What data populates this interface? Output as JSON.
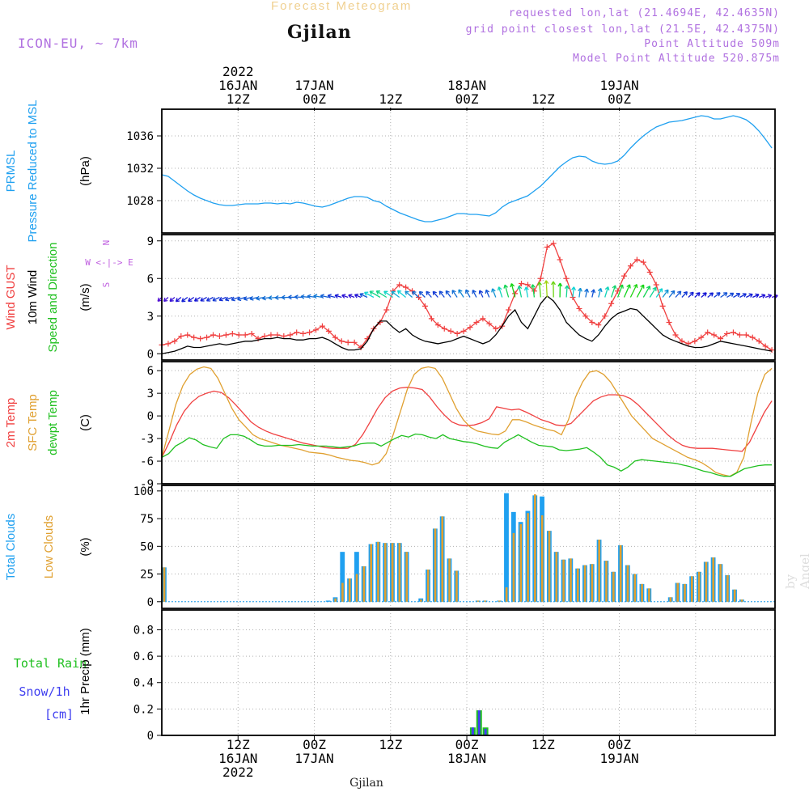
{
  "header": {
    "title": "Forecast Meteogram",
    "location": "Gjilan",
    "model": "ICON-EU, ~ 7km",
    "requested": "requested lon,lat (21.4694E, 42.4635N)",
    "grid_point": "grid point closest lon,lat (21.5E, 42.4375N)",
    "point_altitude": "Point Altitude 509m",
    "model_altitude": "Model Point Altitude 520.875m",
    "watermark": "by Angel",
    "footer_location": "Gjilan"
  },
  "colors": {
    "pressure": "#1fa0f0",
    "gust": "#f04040",
    "wind": "#000000",
    "direction": "#20c020",
    "temp2m": "#f04040",
    "sfc_temp": "#e0a030",
    "dewpt": "#20c020",
    "total_clouds": "#1fa0f0",
    "low_clouds": "#e0a030",
    "rain": "#20c020",
    "snow": "#4040f0",
    "compass": "#c060e0"
  },
  "time_axis": {
    "top_labels": [
      {
        "hour": 12,
        "lines": [
          "2022",
          "16JAN",
          "12Z"
        ]
      },
      {
        "hour": 24,
        "lines": [
          "17JAN",
          "00Z"
        ]
      },
      {
        "hour": 36,
        "lines": [
          "12Z"
        ]
      },
      {
        "hour": 48,
        "lines": [
          "18JAN",
          "00Z"
        ]
      },
      {
        "hour": 60,
        "lines": [
          "12Z"
        ]
      },
      {
        "hour": 72,
        "lines": [
          "19JAN",
          "00Z"
        ]
      }
    ],
    "bottom_labels": [
      {
        "hour": 12,
        "lines": [
          "12Z",
          "16JAN",
          "2022"
        ]
      },
      {
        "hour": 24,
        "lines": [
          "00Z",
          "17JAN"
        ]
      },
      {
        "hour": 36,
        "lines": [
          "12Z"
        ]
      },
      {
        "hour": 48,
        "lines": [
          "00Z",
          "18JAN"
        ]
      },
      {
        "hour": 60,
        "lines": [
          "12Z"
        ]
      },
      {
        "hour": 72,
        "lines": [
          "00Z",
          "19JAN"
        ]
      }
    ]
  },
  "chart_data": [
    {
      "type": "line",
      "panel": "pressure",
      "left_labels": [
        "PRMSL",
        "Pressure Reduced to MSL"
      ],
      "ylabel": "(hPa)",
      "yticks": [
        1028,
        1032,
        1036
      ],
      "ylim": [
        1024,
        1039.3
      ],
      "grid": true,
      "series": [
        {
          "values": [
            1031.2,
            1031.0,
            1030.4,
            1029.8,
            1029.2,
            1028.7,
            1028.3,
            1028.0,
            1027.7,
            1027.5,
            1027.4,
            1027.4,
            1027.5,
            1027.6,
            1027.6,
            1027.6,
            1027.7,
            1027.7,
            1027.6,
            1027.7,
            1027.6,
            1027.8,
            1027.7,
            1027.5,
            1027.3,
            1027.2,
            1027.4,
            1027.7,
            1028.0,
            1028.3,
            1028.5,
            1028.5,
            1028.4,
            1028.0,
            1027.8,
            1027.3,
            1026.9,
            1026.5,
            1026.2,
            1025.9,
            1025.6,
            1025.4,
            1025.4,
            1025.6,
            1025.8,
            1026.1,
            1026.4,
            1026.4,
            1026.3,
            1026.3,
            1026.2,
            1026.1,
            1026.5,
            1027.2,
            1027.7,
            1028.0,
            1028.3,
            1028.6,
            1029.2,
            1029.8,
            1030.6,
            1031.4,
            1032.2,
            1032.8,
            1033.3,
            1033.5,
            1033.4,
            1032.9,
            1032.6,
            1032.5,
            1032.6,
            1032.9,
            1033.6,
            1034.5,
            1035.3,
            1036.0,
            1036.6,
            1037.1,
            1037.4,
            1037.7,
            1037.8,
            1037.9,
            1038.1,
            1038.3,
            1038.5,
            1038.4,
            1038.1,
            1038.1,
            1038.3,
            1038.5,
            1038.3,
            1038.0,
            1037.4,
            1036.6,
            1035.6,
            1034.5
          ]
        }
      ]
    },
    {
      "type": "line",
      "panel": "wind",
      "left_labels": [
        "Wind GUST",
        "10m Wind",
        "Speed and Direction"
      ],
      "ylabel": "(m/s)",
      "yticks": [
        0,
        3,
        6,
        9
      ],
      "ylim": [
        -0.5,
        9.5
      ],
      "compass": [
        "N",
        "W <-|-> E",
        "S"
      ],
      "grid": true,
      "series": [
        {
          "name": "Wind GUST",
          "values": [
            0.7,
            0.8,
            1.0,
            1.4,
            1.5,
            1.3,
            1.2,
            1.3,
            1.5,
            1.4,
            1.5,
            1.6,
            1.5,
            1.5,
            1.6,
            1.2,
            1.4,
            1.5,
            1.5,
            1.4,
            1.5,
            1.7,
            1.6,
            1.7,
            1.9,
            2.2,
            1.8,
            1.3,
            1.0,
            0.9,
            0.9,
            0.5,
            1.2,
            2.0,
            2.5,
            3.5,
            5.0,
            5.5,
            5.3,
            5.0,
            4.5,
            3.8,
            2.8,
            2.3,
            2.0,
            1.8,
            1.6,
            1.8,
            2.1,
            2.5,
            2.8,
            2.4,
            2.0,
            2.2,
            3.5,
            4.8,
            5.6,
            5.5,
            5.0,
            6.0,
            8.5,
            8.8,
            7.5,
            6.0,
            4.5,
            3.6,
            3.0,
            2.5,
            2.3,
            3.0,
            4.0,
            5.0,
            6.2,
            7.0,
            7.5,
            7.3,
            6.5,
            5.5,
            3.8,
            2.5,
            1.5,
            1.0,
            0.8,
            1.0,
            1.3,
            1.7,
            1.5,
            1.2,
            1.6,
            1.7,
            1.5,
            1.5,
            1.3,
            1.0,
            0.6,
            0.3
          ]
        },
        {
          "name": "10m Wind",
          "values": [
            0,
            0.1,
            0.2,
            0.4,
            0.6,
            0.5,
            0.5,
            0.6,
            0.7,
            0.8,
            0.7,
            0.8,
            0.9,
            1.0,
            1.0,
            1.1,
            1.2,
            1.2,
            1.3,
            1.2,
            1.2,
            1.1,
            1.1,
            1.2,
            1.2,
            1.3,
            1.1,
            0.8,
            0.5,
            0.3,
            0.3,
            0.4,
            1.0,
            2.0,
            2.6,
            2.6,
            2.1,
            1.7,
            2.0,
            1.5,
            1.2,
            1.0,
            0.9,
            0.8,
            0.9,
            1.0,
            1.2,
            1.4,
            1.2,
            1.0,
            0.8,
            1.0,
            1.5,
            2.2,
            3.0,
            3.5,
            2.5,
            2.0,
            3.0,
            4.0,
            4.6,
            4.2,
            3.5,
            2.5,
            2.0,
            1.5,
            1.2,
            1.0,
            1.5,
            2.2,
            2.8,
            3.2,
            3.4,
            3.6,
            3.5,
            3.0,
            2.5,
            2.0,
            1.5,
            1.2,
            1.0,
            0.8,
            0.6,
            0.5,
            0.5,
            0.6,
            0.8,
            1.0,
            0.9,
            0.8,
            0.7,
            0.6,
            0.5,
            0.4,
            0.3,
            0.2
          ]
        },
        {
          "name": "direction",
          "values": [
            45,
            47,
            49,
            51,
            53,
            55,
            57,
            60,
            62,
            64,
            67,
            69,
            71,
            73,
            76,
            78,
            80,
            82,
            85,
            87,
            89,
            91,
            93,
            96,
            98,
            100,
            102,
            104,
            107,
            109,
            111,
            113,
            115,
            118,
            120,
            122,
            124,
            127,
            129,
            131,
            133,
            135,
            138,
            140,
            142,
            144,
            146,
            148,
            151,
            153,
            155,
            157,
            159,
            162,
            164,
            166,
            168,
            170,
            173,
            175,
            177,
            179,
            181,
            184,
            186,
            188,
            190,
            193,
            195,
            197,
            199,
            201,
            204,
            206,
            208,
            210,
            212,
            214,
            216,
            219,
            221,
            223,
            225,
            227,
            229,
            231,
            233,
            235,
            238,
            240,
            242,
            244,
            246,
            249,
            251,
            253
          ]
        }
      ]
    },
    {
      "type": "line",
      "panel": "temperature",
      "left_labels": [
        "2m Temp",
        "SFC Temp",
        "dewpt Temp"
      ],
      "ylabel": "(C)",
      "yticks": [
        -9,
        -6,
        -3,
        0,
        3,
        6
      ],
      "ylim": [
        -9,
        7.2
      ],
      "grid": true,
      "series": [
        {
          "name": "2m Temp",
          "values": [
            -5.5,
            -3.5,
            -1.2,
            0.6,
            1.8,
            2.6,
            3.0,
            3.3,
            3.1,
            2.4,
            1.4,
            0.3,
            -0.8,
            -1.5,
            -2.0,
            -2.4,
            -2.7,
            -3.0,
            -3.3,
            -3.6,
            -3.8,
            -4.0,
            -4.2,
            -4.3,
            -4.3,
            -4.3,
            -3.8,
            -2.5,
            -0.8,
            1.0,
            2.4,
            3.3,
            3.7,
            3.8,
            3.7,
            3.5,
            2.5,
            1.2,
            0.1,
            -0.8,
            -1.2,
            -1.3,
            -1.2,
            -0.9,
            -0.4,
            1.2,
            1.0,
            0.8,
            0.9,
            0.5,
            0.0,
            -0.5,
            -0.8,
            -1.2,
            -1.3,
            -1.0,
            0.0,
            1.0,
            2.0,
            2.5,
            2.8,
            2.8,
            2.7,
            2.3,
            1.5,
            0.5,
            -0.5,
            -1.5,
            -2.5,
            -3.3,
            -3.9,
            -4.2,
            -4.3,
            -4.3,
            -4.3,
            -4.4,
            -4.5,
            -4.6,
            -4.7,
            -3.5,
            -1.5,
            0.5,
            2.0
          ]
        },
        {
          "name": "SFC Temp",
          "values": [
            -5.5,
            -2.0,
            1.5,
            4.0,
            5.5,
            6.2,
            6.5,
            6.3,
            5.0,
            3.0,
            1.0,
            -0.5,
            -1.5,
            -2.5,
            -3.0,
            -3.3,
            -3.6,
            -3.9,
            -4.1,
            -4.3,
            -4.5,
            -4.8,
            -4.9,
            -5.0,
            -5.2,
            -5.5,
            -5.7,
            -5.9,
            -6.0,
            -6.2,
            -6.5,
            -6.2,
            -5.0,
            -2.5,
            0.5,
            3.5,
            5.5,
            6.3,
            6.5,
            6.3,
            5.0,
            3.0,
            1.0,
            -0.5,
            -1.5,
            -2.0,
            -2.2,
            -2.4,
            -2.5,
            -2.0,
            -0.5,
            -0.5,
            -0.8,
            -1.2,
            -1.5,
            -1.8,
            -2.0,
            -2.5,
            -0.5,
            2.5,
            4.5,
            5.8,
            6.0,
            5.5,
            4.5,
            3.0,
            1.5,
            0.0,
            -1.0,
            -2.0,
            -3.0,
            -3.5,
            -4.0,
            -4.5,
            -5.0,
            -5.5,
            -5.8,
            -6.2,
            -6.8,
            -7.5,
            -7.8,
            -8.0,
            -7.5,
            -5.5,
            -1.0,
            3.0,
            5.5,
            6.3
          ]
        },
        {
          "name": "dewpt Temp",
          "values": [
            -5.5,
            -5.0,
            -4.0,
            -3.5,
            -2.9,
            -3.2,
            -3.8,
            -4.1,
            -4.3,
            -3.0,
            -2.5,
            -2.5,
            -2.7,
            -3.2,
            -3.8,
            -4.0,
            -4.0,
            -3.9,
            -3.9,
            -3.9,
            -3.8,
            -3.9,
            -4.0,
            -4.0,
            -4.0,
            -4.1,
            -4.2,
            -4.1,
            -4.0,
            -3.7,
            -3.6,
            -3.6,
            -4.0,
            -3.5,
            -3.0,
            -2.6,
            -2.8,
            -2.4,
            -2.5,
            -2.8,
            -3.0,
            -2.5,
            -3.0,
            -3.2,
            -3.4,
            -3.5,
            -3.7,
            -4.0,
            -4.2,
            -4.3,
            -3.5,
            -3.0,
            -2.5,
            -3.0,
            -3.5,
            -3.9,
            -4.0,
            -4.1,
            -4.5,
            -4.6,
            -4.5,
            -4.4,
            -4.2,
            -4.8,
            -5.5,
            -6.5,
            -6.8,
            -7.3,
            -6.8,
            -6.0,
            -5.8,
            -5.9,
            -6.0,
            -6.1,
            -6.2,
            -6.3,
            -6.5,
            -6.7,
            -7.0,
            -7.3,
            -7.5,
            -7.8,
            -8.0,
            -8.0,
            -7.5,
            -7.0,
            -6.8,
            -6.6,
            -6.5,
            -6.5
          ]
        }
      ]
    },
    {
      "type": "bar",
      "panel": "clouds",
      "left_labels": [
        "Total Clouds",
        "Low Clouds"
      ],
      "ylabel": "(%)",
      "yticks": [
        0,
        25,
        50,
        75,
        100
      ],
      "ylim": [
        -6,
        105
      ],
      "grid": true,
      "series": [
        {
          "name": "Total Clouds",
          "values": [
            31,
            0,
            0,
            0,
            0,
            0,
            0,
            0,
            0,
            0,
            0,
            0,
            0,
            0,
            0,
            0,
            0,
            0,
            0,
            0,
            0,
            0,
            0,
            1,
            4,
            45,
            21,
            45,
            32,
            52,
            54,
            53,
            53,
            53,
            45,
            0,
            3,
            29,
            66,
            77,
            39,
            28,
            0,
            0,
            1,
            1,
            0,
            1,
            98,
            81,
            72,
            82,
            96,
            95,
            64,
            45,
            38,
            39,
            30,
            33,
            34,
            56,
            37,
            27,
            51,
            33,
            25,
            16,
            12,
            0,
            0,
            4,
            17,
            16,
            23,
            27,
            36,
            40,
            34,
            24,
            11,
            2,
            0,
            0,
            0,
            0
          ]
        },
        {
          "name": "Low Clouds",
          "values": [
            31,
            0,
            0,
            0,
            0,
            0,
            0,
            0,
            0,
            0,
            0,
            0,
            0,
            0,
            0,
            0,
            0,
            0,
            0,
            0,
            0,
            0,
            0,
            0,
            3,
            17,
            21,
            25,
            32,
            52,
            54,
            53,
            53,
            53,
            45,
            0,
            2,
            29,
            66,
            77,
            39,
            28,
            0,
            0,
            1,
            1,
            0,
            1,
            13,
            62,
            70,
            80,
            97,
            78,
            64,
            45,
            38,
            39,
            30,
            33,
            34,
            56,
            37,
            27,
            51,
            33,
            25,
            16,
            12,
            0,
            0,
            4,
            17,
            16,
            23,
            27,
            36,
            40,
            34,
            24,
            11,
            2,
            0,
            0,
            0,
            0
          ]
        }
      ]
    },
    {
      "type": "bar",
      "panel": "precipitation",
      "left_labels": [
        "Total  Rain",
        "Snow/1h",
        "[cm]"
      ],
      "ylabel": "1hr Precip (mm)",
      "yticks": [
        0,
        0.2,
        0.4,
        0.6,
        0.8
      ],
      "ylim": [
        0,
        0.95
      ],
      "grid": true,
      "series": [
        {
          "name": "Total Rain",
          "values": [
            {
              "hour": 49,
              "value": 0.06
            },
            {
              "hour": 50,
              "value": 0.19
            },
            {
              "hour": 51,
              "value": 0.06
            }
          ]
        },
        {
          "name": "Snow/1h",
          "values": [
            {
              "hour": 49,
              "value": 0.06
            },
            {
              "hour": 50,
              "value": 0.19
            },
            {
              "hour": 51,
              "value": 0.05
            }
          ]
        }
      ]
    }
  ]
}
